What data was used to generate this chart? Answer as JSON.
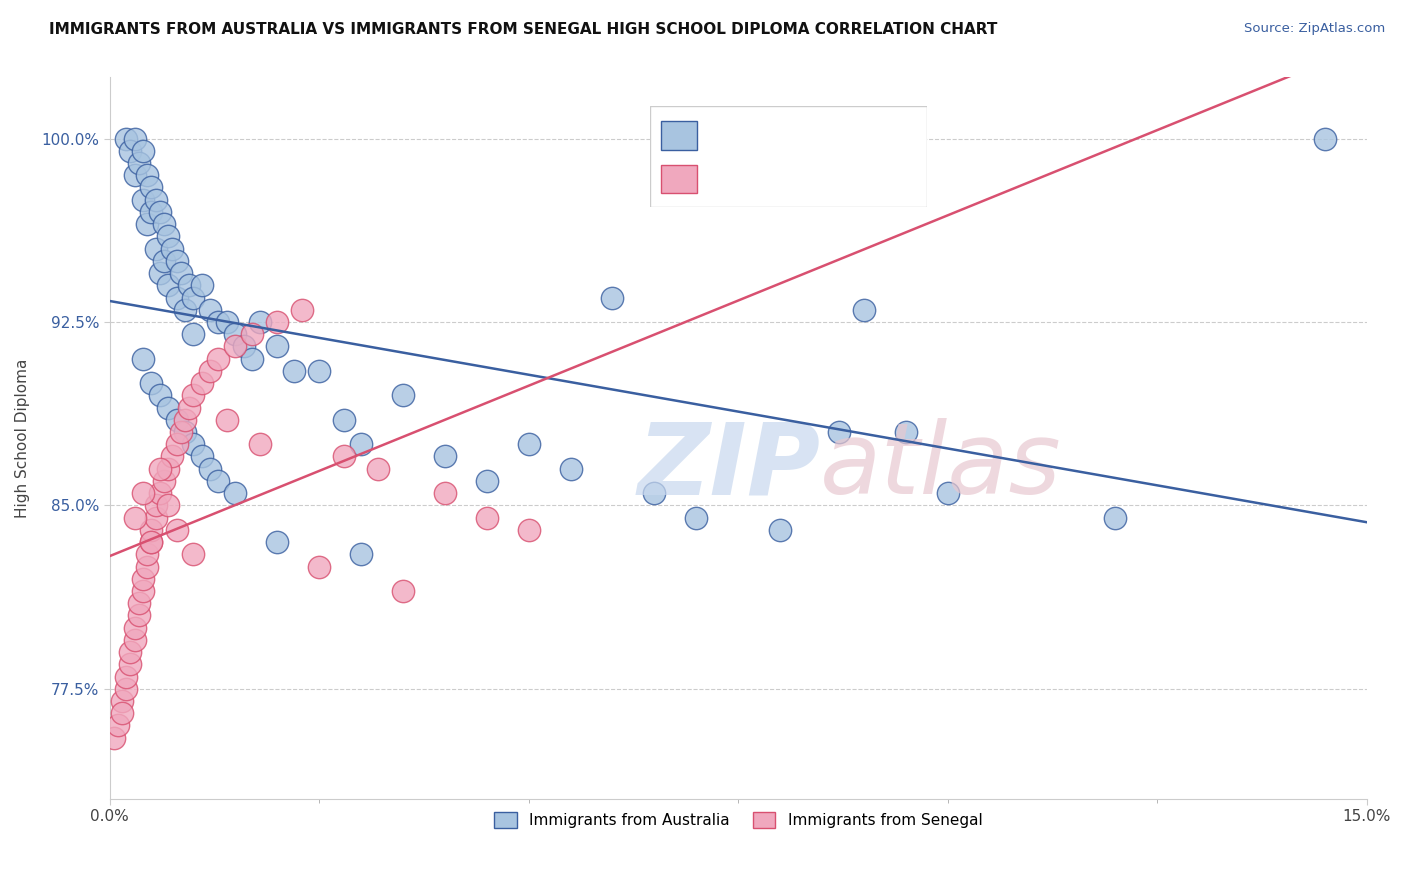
{
  "title": "IMMIGRANTS FROM AUSTRALIA VS IMMIGRANTS FROM SENEGAL HIGH SCHOOL DIPLOMA CORRELATION CHART",
  "source_text": "Source: ZipAtlas.com",
  "ylabel": "High School Diploma",
  "xlim": [
    0.0,
    15.0
  ],
  "ylim": [
    73.0,
    102.5
  ],
  "xticks": [
    0.0,
    15.0
  ],
  "xticklabels": [
    "0.0%",
    "15.0%"
  ],
  "yticks": [
    77.5,
    85.0,
    92.5,
    100.0
  ],
  "yticklabels": [
    "77.5%",
    "85.0%",
    "92.5%",
    "100.0%"
  ],
  "color_australia": "#a8c4e0",
  "color_senegal": "#f0a8be",
  "trendline_australia_color": "#3a5fa0",
  "trendline_senegal_color": "#d85070",
  "australia_x": [
    0.2,
    0.25,
    0.3,
    0.3,
    0.35,
    0.4,
    0.4,
    0.45,
    0.45,
    0.5,
    0.5,
    0.55,
    0.55,
    0.6,
    0.6,
    0.65,
    0.65,
    0.7,
    0.7,
    0.75,
    0.8,
    0.8,
    0.85,
    0.9,
    0.95,
    1.0,
    1.0,
    1.1,
    1.2,
    1.3,
    1.4,
    1.5,
    1.6,
    1.7,
    1.8,
    2.0,
    2.2,
    2.5,
    2.8,
    3.0,
    3.5,
    4.0,
    4.5,
    5.0,
    5.5,
    6.0,
    6.5,
    7.0,
    8.0,
    9.0,
    9.5,
    10.0,
    12.0,
    14.5,
    0.4,
    0.5,
    0.6,
    0.7,
    0.8,
    0.9,
    1.0,
    1.1,
    1.2,
    1.3,
    1.5,
    2.0,
    3.0,
    8.7
  ],
  "australia_y": [
    100.0,
    99.5,
    100.0,
    98.5,
    99.0,
    99.5,
    97.5,
    98.5,
    96.5,
    98.0,
    97.0,
    97.5,
    95.5,
    97.0,
    94.5,
    96.5,
    95.0,
    96.0,
    94.0,
    95.5,
    95.0,
    93.5,
    94.5,
    93.0,
    94.0,
    93.5,
    92.0,
    94.0,
    93.0,
    92.5,
    92.5,
    92.0,
    91.5,
    91.0,
    92.5,
    91.5,
    90.5,
    90.5,
    88.5,
    87.5,
    89.5,
    87.0,
    86.0,
    87.5,
    86.5,
    93.5,
    85.5,
    84.5,
    84.0,
    93.0,
    88.0,
    85.5,
    84.5,
    100.0,
    91.0,
    90.0,
    89.5,
    89.0,
    88.5,
    88.0,
    87.5,
    87.0,
    86.5,
    86.0,
    85.5,
    83.5,
    83.0,
    88.0
  ],
  "senegal_x": [
    0.05,
    0.1,
    0.15,
    0.15,
    0.2,
    0.2,
    0.25,
    0.25,
    0.3,
    0.3,
    0.35,
    0.35,
    0.4,
    0.4,
    0.45,
    0.45,
    0.5,
    0.5,
    0.55,
    0.55,
    0.6,
    0.65,
    0.7,
    0.75,
    0.8,
    0.85,
    0.9,
    0.95,
    1.0,
    1.1,
    1.2,
    1.3,
    1.5,
    1.7,
    2.0,
    2.3,
    2.8,
    3.2,
    4.0,
    4.5,
    5.0,
    0.3,
    0.4,
    0.5,
    0.6,
    0.7,
    0.8,
    1.0,
    1.4,
    1.8,
    2.5,
    3.5
  ],
  "senegal_y": [
    75.5,
    76.0,
    77.0,
    76.5,
    77.5,
    78.0,
    78.5,
    79.0,
    79.5,
    80.0,
    80.5,
    81.0,
    81.5,
    82.0,
    82.5,
    83.0,
    83.5,
    84.0,
    84.5,
    85.0,
    85.5,
    86.0,
    86.5,
    87.0,
    87.5,
    88.0,
    88.5,
    89.0,
    89.5,
    90.0,
    90.5,
    91.0,
    91.5,
    92.0,
    92.5,
    93.0,
    87.0,
    86.5,
    85.5,
    84.5,
    84.0,
    84.5,
    85.5,
    83.5,
    86.5,
    85.0,
    84.0,
    83.0,
    88.5,
    87.5,
    82.5,
    81.5
  ]
}
